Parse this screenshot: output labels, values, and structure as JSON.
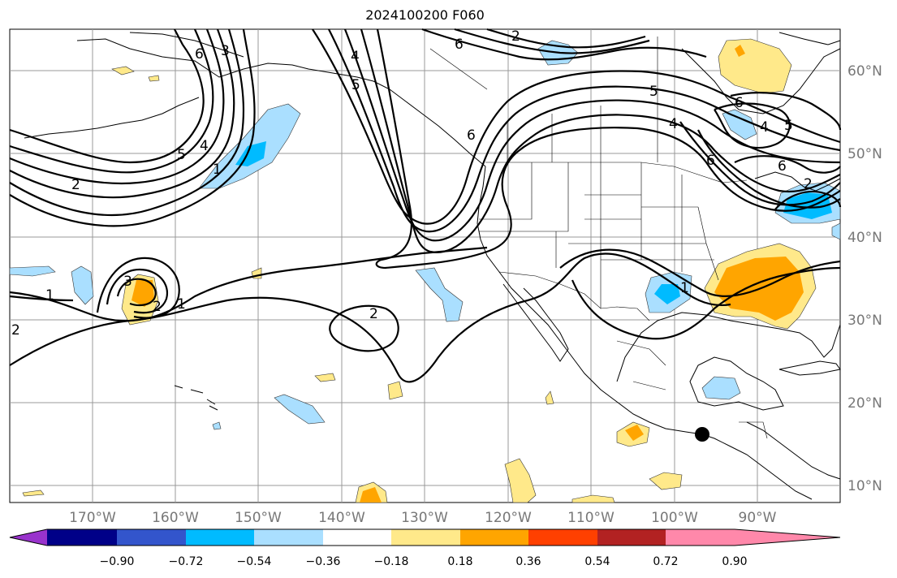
{
  "title": "2024100200 F060",
  "map": {
    "lon_ticks": [
      "170°W",
      "160°W",
      "150°W",
      "140°W",
      "130°W",
      "120°W",
      "110°W",
      "100°W",
      "90°W"
    ],
    "lat_ticks": [
      "60°N",
      "50°N",
      "40°N",
      "30°N",
      "20°N",
      "10°N"
    ],
    "contour_labels": [
      "2",
      "6",
      "3",
      "4",
      "5",
      "6",
      "4",
      "5",
      "6",
      "1",
      "2",
      "2",
      "1",
      "3",
      "2",
      "1",
      "2",
      "5",
      "4",
      "1",
      "6",
      "6",
      "4",
      "5",
      "6",
      "2"
    ],
    "marker": "location-dot"
  },
  "colorbar": {
    "colors": [
      "#9933cc",
      "#000088",
      "#3355cc",
      "#00bbff",
      "#aadfff",
      "#ffffff",
      "#ffe98a",
      "#ffa500",
      "#ff4000",
      "#b22222",
      "#ff88aa"
    ],
    "labels": [
      "−0.90",
      "−0.72",
      "−0.54",
      "−0.36",
      "−0.18",
      "0.18",
      "0.36",
      "0.54",
      "0.72",
      "0.90"
    ]
  }
}
